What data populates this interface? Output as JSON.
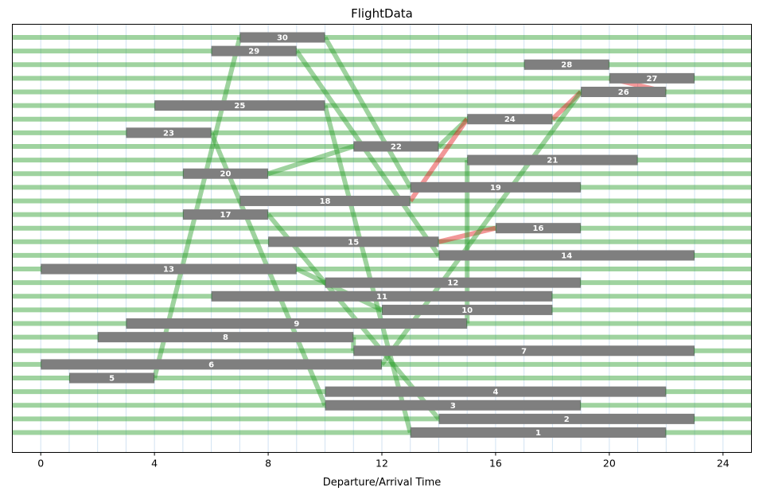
{
  "chart_data": {
    "type": "bar",
    "title": "FlightData",
    "xlabel": "Departure/Arrival Time",
    "ylabel": "",
    "xlim": [
      -1,
      25
    ],
    "xticks": [
      0,
      4,
      8,
      12,
      16,
      20,
      24
    ],
    "vertical_gridlines_every": 1,
    "colors": {
      "bar": "#7f7f7f",
      "connection": "#2ca02c",
      "conflict": "#e31a1c",
      "grid": "#c6dbef",
      "bar_label": "#ffffff"
    },
    "flights": [
      {
        "id": "1",
        "start": 13,
        "end": 22
      },
      {
        "id": "2",
        "start": 14,
        "end": 23
      },
      {
        "id": "3",
        "start": 10,
        "end": 19
      },
      {
        "id": "4",
        "start": 10,
        "end": 22
      },
      {
        "id": "5",
        "start": 1,
        "end": 4
      },
      {
        "id": "6",
        "start": 0,
        "end": 12
      },
      {
        "id": "7",
        "start": 11,
        "end": 23
      },
      {
        "id": "8",
        "start": 2,
        "end": 11
      },
      {
        "id": "9",
        "start": 3,
        "end": 15
      },
      {
        "id": "10",
        "start": 12,
        "end": 18
      },
      {
        "id": "11",
        "start": 6,
        "end": 18
      },
      {
        "id": "12",
        "start": 10,
        "end": 19
      },
      {
        "id": "13",
        "start": 0,
        "end": 9
      },
      {
        "id": "14",
        "start": 14,
        "end": 23
      },
      {
        "id": "15",
        "start": 8,
        "end": 14
      },
      {
        "id": "16",
        "start": 16,
        "end": 19
      },
      {
        "id": "17",
        "start": 5,
        "end": 8
      },
      {
        "id": "18",
        "start": 7,
        "end": 13
      },
      {
        "id": "19",
        "start": 13,
        "end": 19
      },
      {
        "id": "20",
        "start": 5,
        "end": 8
      },
      {
        "id": "21",
        "start": 15,
        "end": 21
      },
      {
        "id": "22",
        "start": 11,
        "end": 14
      },
      {
        "id": "23",
        "start": 3,
        "end": 6
      },
      {
        "id": "24",
        "start": 15,
        "end": 18
      },
      {
        "id": "25",
        "start": 4,
        "end": 10
      },
      {
        "id": "26",
        "start": 19,
        "end": 22
      },
      {
        "id": "27",
        "start": 20,
        "end": 23
      },
      {
        "id": "28",
        "start": 17,
        "end": 20
      },
      {
        "id": "29",
        "start": 6,
        "end": 9
      },
      {
        "id": "30",
        "start": 7,
        "end": 10
      }
    ],
    "connections": [
      {
        "from": "5",
        "to": "30",
        "status": "ok"
      },
      {
        "from": "30",
        "to": "19",
        "status": "ok"
      },
      {
        "from": "29",
        "to": "14",
        "status": "ok"
      },
      {
        "from": "25",
        "to": "1",
        "status": "ok"
      },
      {
        "from": "23",
        "to": "3",
        "status": "ok"
      },
      {
        "from": "20",
        "to": "22",
        "status": "ok"
      },
      {
        "from": "22",
        "to": "24",
        "status": "ok"
      },
      {
        "from": "18",
        "to": "24",
        "status": "conflict"
      },
      {
        "from": "24",
        "to": "26",
        "status": "conflict"
      },
      {
        "from": "26",
        "to": "27",
        "status": "conflict"
      },
      {
        "from": "15",
        "to": "16",
        "status": "conflict"
      },
      {
        "from": "17",
        "to": "2",
        "status": "ok"
      },
      {
        "from": "13",
        "to": "10",
        "status": "ok"
      },
      {
        "from": "9",
        "to": "21",
        "status": "ok"
      },
      {
        "from": "6",
        "to": "26",
        "status": "ok"
      },
      {
        "from": "8",
        "to": "7",
        "status": "ok"
      }
    ]
  }
}
